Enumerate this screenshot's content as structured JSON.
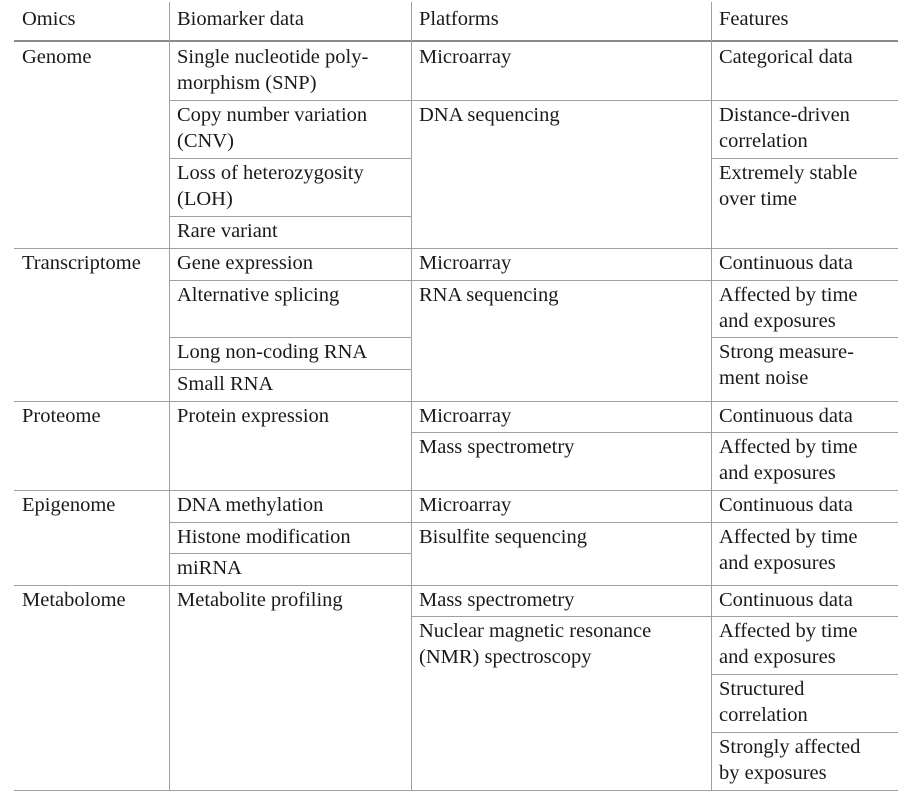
{
  "headers": [
    "Omics",
    "Biomarker data",
    "Platforms",
    "Features"
  ],
  "groups": [
    {
      "omics": "Genome",
      "biomarkers": [
        "Single nucleotide poly-\nmorphism (SNP)",
        "Copy number variation\n(CNV)",
        "Loss of heterozygosity\n(LOH)",
        "Rare variant"
      ],
      "platforms": [
        "Microarray",
        "DNA sequencing"
      ],
      "features": [
        "Categorical data",
        "Distance-driven\ncorrelation",
        "Extremely stable\nover time"
      ]
    },
    {
      "omics": "Transcriptome",
      "biomarkers": [
        "Gene expression",
        "Alternative splicing",
        "Long non-coding RNA",
        "Small RNA"
      ],
      "platforms": [
        "Microarray",
        "RNA sequencing"
      ],
      "features": [
        "Continuous data",
        "Affected by time\nand exposures",
        "Strong measure-\nment noise"
      ]
    },
    {
      "omics": "Proteome",
      "biomarkers": [
        "Protein expression"
      ],
      "platforms": [
        "Microarray",
        "Mass spectrometry"
      ],
      "features": [
        "Continuous data",
        "Affected by time\nand exposures"
      ]
    },
    {
      "omics": "Epigenome",
      "biomarkers": [
        "DNA methylation",
        "Histone modification",
        "miRNA"
      ],
      "platforms": [
        "Microarray",
        "Bisulfite sequencing"
      ],
      "features": [
        "Continuous data",
        "Affected by time\nand exposures"
      ]
    },
    {
      "omics": "Metabolome",
      "biomarkers": [
        "Metabolite profiling"
      ],
      "platforms": [
        "Mass spectrometry",
        "Nuclear magnetic resonance\n(NMR) spectroscopy"
      ],
      "features": [
        "Continuous data",
        "Affected by time\nand exposures",
        "Structured\ncorrelation",
        "Strongly affected\nby exposures"
      ]
    }
  ]
}
